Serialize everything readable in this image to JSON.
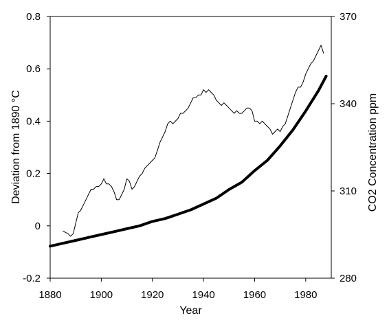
{
  "chart_data": {
    "type": "line",
    "title": "",
    "xlabel": "Year",
    "ylabel_left": "Deviation from 1890  °C",
    "ylabel_right": "CO2 Concentration ppm",
    "xlim": [
      1880,
      1990
    ],
    "ylim_left": [
      -0.2,
      0.8
    ],
    "ylim_right": [
      280,
      370
    ],
    "x_ticks": [
      "1880",
      "1900",
      "1920",
      "1940",
      "1960",
      "1980"
    ],
    "y_left_ticks": [
      "-0.2",
      "0",
      "0.2",
      "0.4",
      "0.6",
      "0.8"
    ],
    "y_right_ticks": [
      "280",
      "310",
      "340",
      "370"
    ],
    "grid": false,
    "legend": "none",
    "series": [
      {
        "axis": "left",
        "line_color": "#000000",
        "line_weight": "thin",
        "x": [
          1885,
          1887,
          1888,
          1889,
          1890,
          1891,
          1892,
          1893,
          1894,
          1895,
          1896,
          1897,
          1898,
          1899,
          1900,
          1901,
          1902,
          1903,
          1904,
          1905,
          1906,
          1907,
          1908,
          1909,
          1910,
          1911,
          1912,
          1913,
          1914,
          1915,
          1916,
          1917,
          1918,
          1919,
          1920,
          1921,
          1922,
          1923,
          1924,
          1925,
          1926,
          1927,
          1928,
          1929,
          1930,
          1931,
          1932,
          1933,
          1934,
          1935,
          1936,
          1937,
          1938,
          1939,
          1940,
          1941,
          1942,
          1943,
          1944,
          1945,
          1946,
          1947,
          1948,
          1949,
          1950,
          1951,
          1952,
          1953,
          1954,
          1955,
          1956,
          1957,
          1958,
          1959,
          1960,
          1961,
          1962,
          1963,
          1964,
          1965,
          1966,
          1967,
          1968,
          1969,
          1970,
          1971,
          1972,
          1973,
          1974,
          1975,
          1976,
          1977,
          1978,
          1979,
          1980,
          1981,
          1982,
          1983,
          1984,
          1985,
          1986,
          1987
        ],
        "values": [
          -0.02,
          -0.03,
          -0.04,
          -0.03,
          0.01,
          0.05,
          0.06,
          0.08,
          0.1,
          0.12,
          0.14,
          0.14,
          0.15,
          0.15,
          0.16,
          0.18,
          0.16,
          0.16,
          0.15,
          0.13,
          0.1,
          0.1,
          0.12,
          0.14,
          0.18,
          0.17,
          0.14,
          0.15,
          0.17,
          0.19,
          0.2,
          0.22,
          0.23,
          0.24,
          0.25,
          0.26,
          0.29,
          0.32,
          0.34,
          0.36,
          0.39,
          0.4,
          0.39,
          0.4,
          0.41,
          0.43,
          0.43,
          0.44,
          0.45,
          0.47,
          0.49,
          0.49,
          0.5,
          0.5,
          0.52,
          0.51,
          0.52,
          0.51,
          0.5,
          0.48,
          0.47,
          0.46,
          0.47,
          0.46,
          0.45,
          0.44,
          0.43,
          0.44,
          0.43,
          0.43,
          0.44,
          0.45,
          0.45,
          0.44,
          0.4,
          0.4,
          0.39,
          0.4,
          0.39,
          0.38,
          0.37,
          0.35,
          0.36,
          0.37,
          0.36,
          0.38,
          0.39,
          0.42,
          0.45,
          0.48,
          0.51,
          0.53,
          0.53,
          0.55,
          0.58,
          0.6,
          0.62,
          0.63,
          0.65,
          0.67,
          0.69,
          0.66
        ]
      },
      {
        "axis": "right",
        "line_color": "#000000",
        "line_weight": "thick",
        "x": [
          1880,
          1885,
          1890,
          1895,
          1900,
          1905,
          1910,
          1915,
          1920,
          1925,
          1930,
          1935,
          1940,
          1945,
          1950,
          1955,
          1960,
          1965,
          1970,
          1975,
          1980,
          1985,
          1988
        ],
        "values": [
          291,
          292,
          293,
          294,
          295,
          296,
          297,
          298,
          299.5,
          300.5,
          302,
          303.5,
          305.5,
          307.5,
          310.5,
          313,
          317,
          320.5,
          325.5,
          331,
          337.5,
          344.5,
          349.5
        ]
      }
    ]
  }
}
